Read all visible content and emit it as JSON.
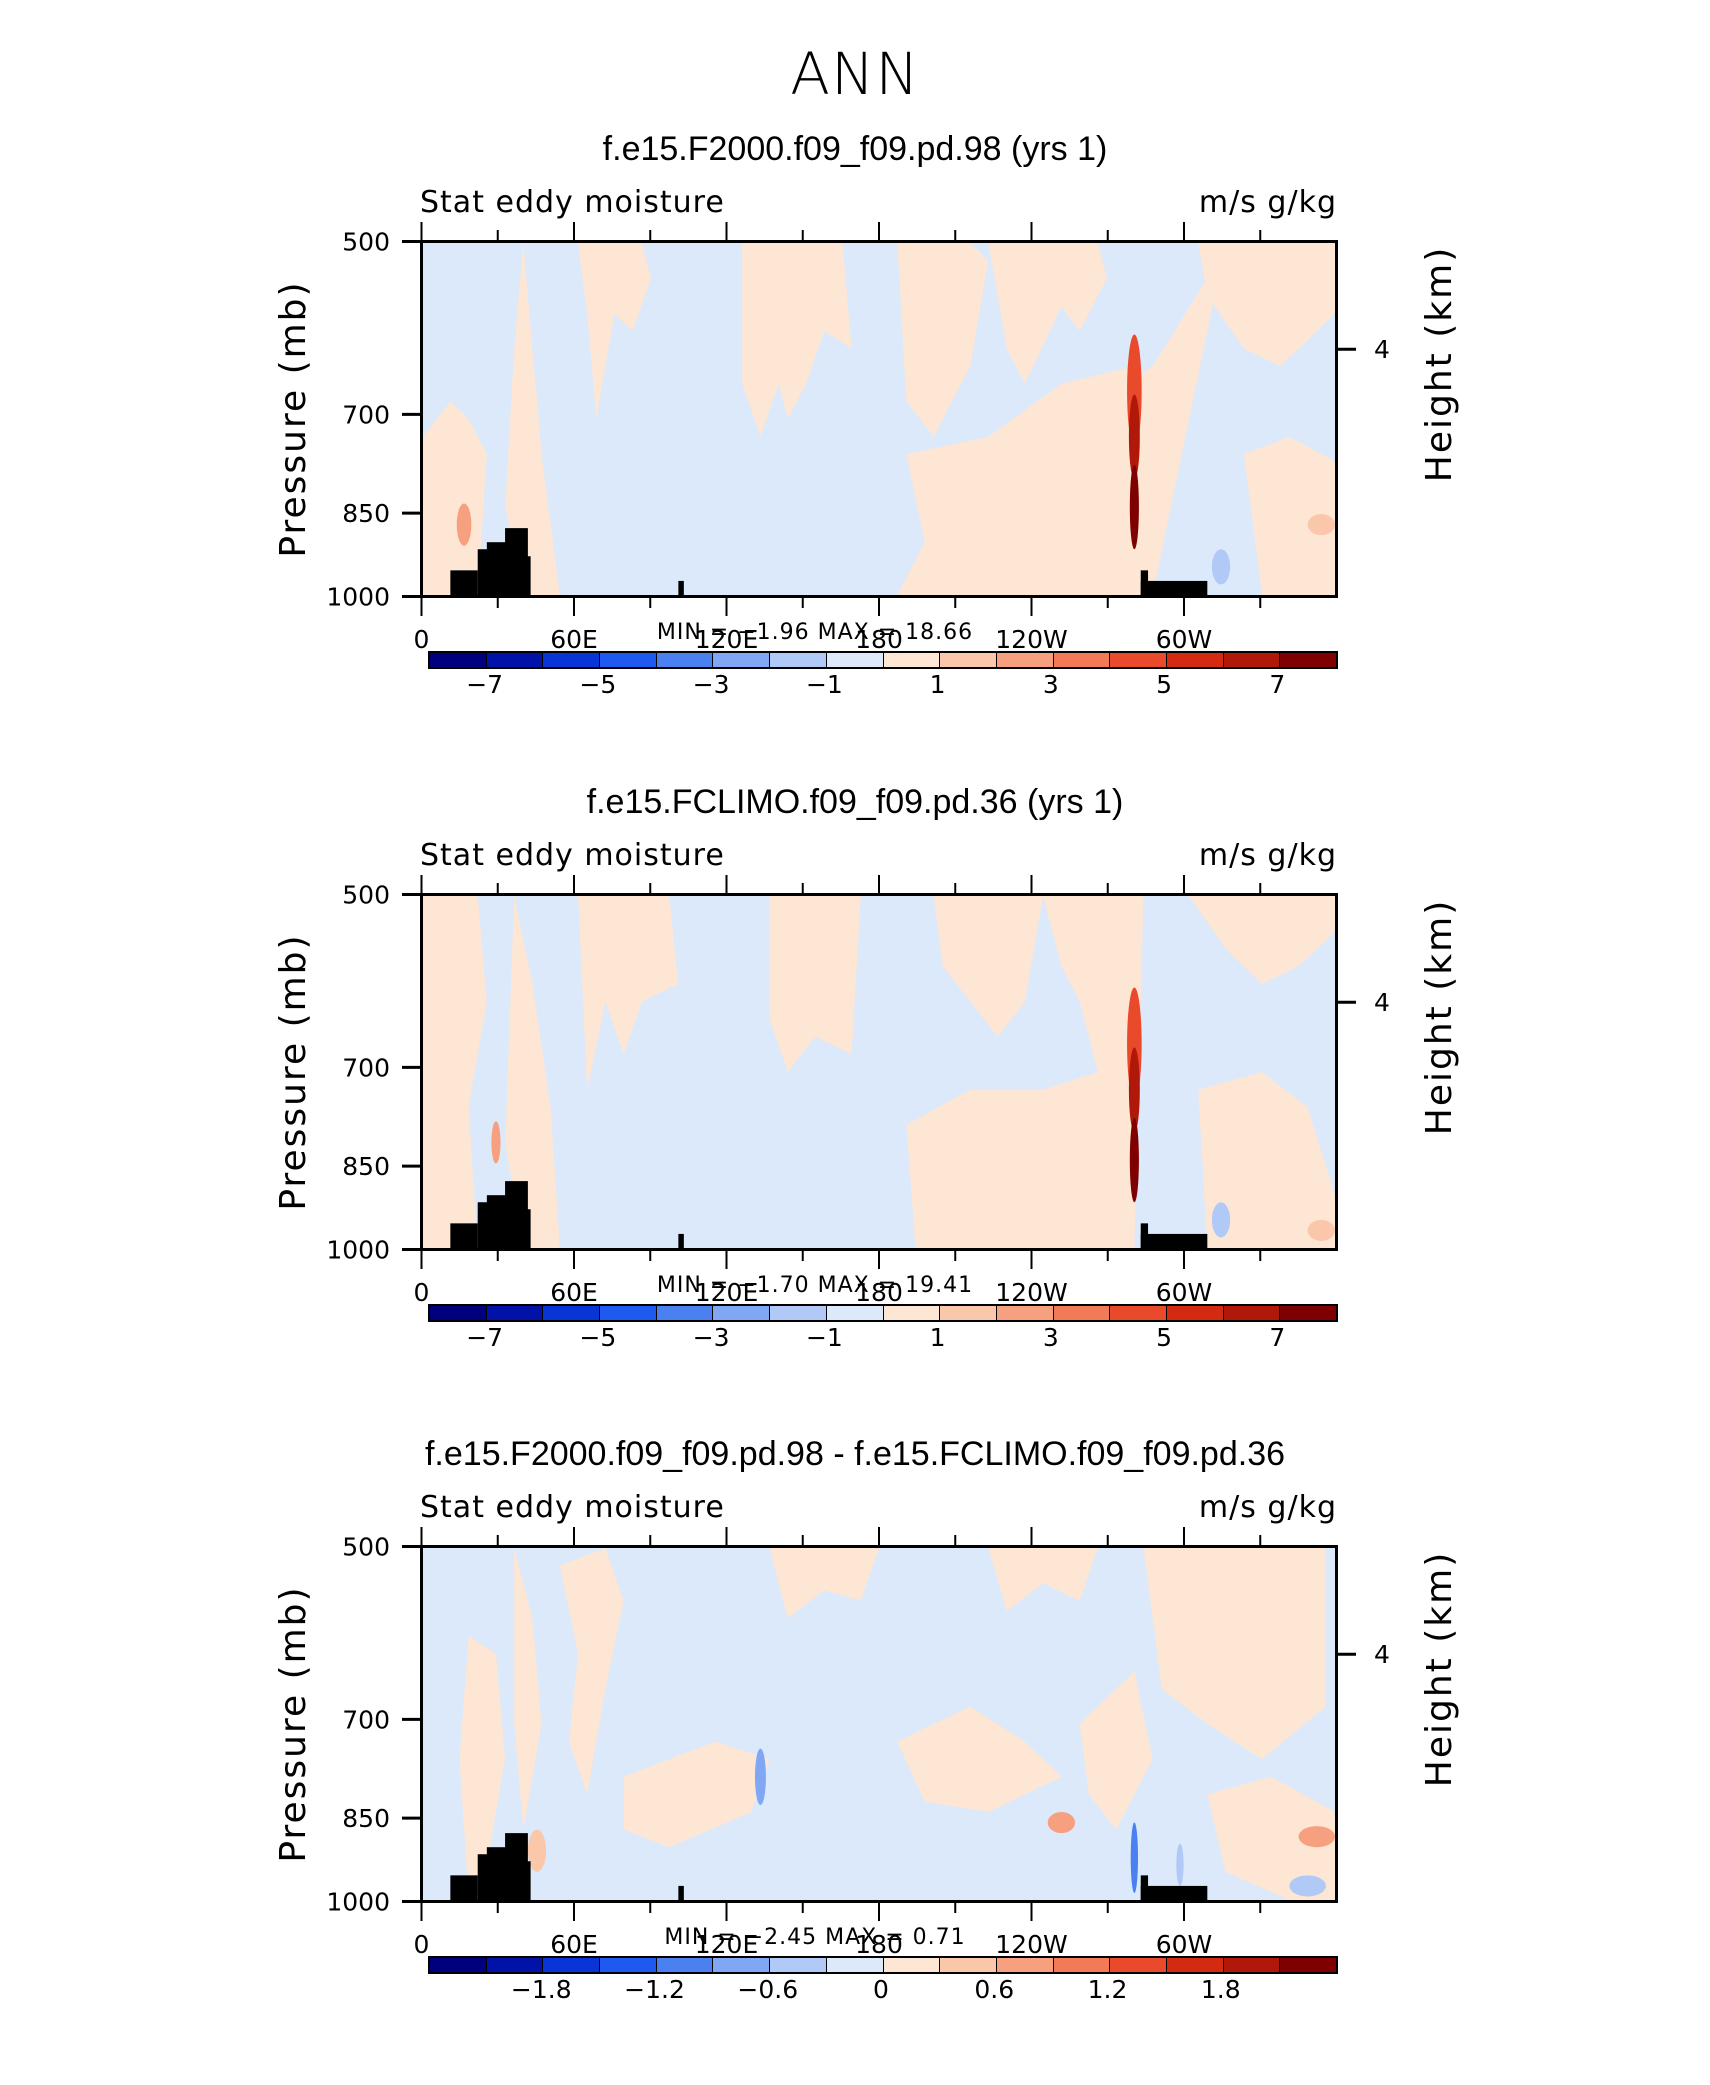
{
  "title": "ANN",
  "panels": [
    {
      "title": "f.e15.F2000.f09_f09.pd.98 (yrs 1)",
      "left_label": "Stat eddy moisture",
      "right_label": "m/s g/kg",
      "ylabel": "Pressure (mb)",
      "ylabel_right": "Height (km)",
      "min_label": "MIN =",
      "min_value": "−1.96",
      "max_label": "MAX =",
      "max_value": "18.66",
      "colorbar_labels": [
        "−7",
        "−5",
        "−3",
        "−1",
        "1",
        "3",
        "5",
        "7"
      ]
    },
    {
      "title": "f.e15.FCLIMO.f09_f09.pd.36 (yrs 1)",
      "left_label": "Stat eddy moisture",
      "right_label": "m/s g/kg",
      "ylabel": "Pressure (mb)",
      "ylabel_right": "Height (km)",
      "min_label": "MIN =",
      "min_value": "−1.70",
      "max_label": "MAX =",
      "max_value": "19.41",
      "colorbar_labels": [
        "−7",
        "−5",
        "−3",
        "−1",
        "1",
        "3",
        "5",
        "7"
      ]
    },
    {
      "title": "f.e15.F2000.f09_f09.pd.98 - f.e15.FCLIMO.f09_f09.pd.36",
      "left_label": "Stat eddy moisture",
      "right_label": "m/s g/kg",
      "ylabel": "Pressure (mb)",
      "ylabel_right": "Height (km)",
      "min_label": "MIN =",
      "min_value": "−2.45",
      "max_label": "MAX =",
      "max_value": "0.71",
      "colorbar_labels": [
        "−1.8",
        "−1.2",
        "−0.6",
        "0",
        "0.6",
        "1.2",
        "1.8"
      ]
    }
  ],
  "axes": {
    "y_ticks": [
      "500",
      "700",
      "850",
      "1000"
    ],
    "x_ticks": [
      "0",
      "60E",
      "120E",
      "180",
      "120W",
      "60W"
    ],
    "right_ticks": [
      "4"
    ]
  },
  "colors": {
    "main_colorbar": [
      "#00007f",
      "#0012a8",
      "#0a35d6",
      "#1f5af0",
      "#4a80f0",
      "#7fa7f3",
      "#b0c9f6",
      "#dbe9fb",
      "#fde6d4",
      "#fbc7ab",
      "#f7a080",
      "#f27a56",
      "#e94a2b",
      "#d42a12",
      "#b0190a",
      "#7f0000"
    ],
    "diff_colorbar": [
      "#00007f",
      "#0012a8",
      "#0a35d6",
      "#1f5af0",
      "#4a80f0",
      "#7fa7f3",
      "#b0c9f6",
      "#dbe9fb",
      "#fde6d4",
      "#fbc7ab",
      "#f7a080",
      "#f27a56",
      "#e94a2b",
      "#d42a12",
      "#b0190a",
      "#7f0000"
    ],
    "negative_fill": "#dbe9fb",
    "positive_fill": "#fde6d4",
    "topography": "#000000"
  },
  "chart_data": [
    {
      "type": "heatmap",
      "title": "f.e15.F2000.f09_f09.pd.98 (yrs 1)",
      "xlabel": "",
      "ylabel": "Pressure (mb)",
      "y2label": "Height (km)",
      "x_tick_labels": [
        "0",
        "60E",
        "120E",
        "180",
        "120W",
        "60W"
      ],
      "y_ticks": [
        500,
        700,
        850,
        1000
      ],
      "ylim": [
        1000,
        500
      ],
      "colorbar_levels": [
        -7,
        -6,
        -5,
        -4,
        -3,
        -2,
        -1,
        0,
        1,
        2,
        3,
        4,
        5,
        6,
        7
      ],
      "min": -1.96,
      "max": 18.66
    },
    {
      "type": "heatmap",
      "title": "f.e15.FCLIMO.f09_f09.pd.36 (yrs 1)",
      "xlabel": "",
      "ylabel": "Pressure (mb)",
      "y2label": "Height (km)",
      "x_tick_labels": [
        "0",
        "60E",
        "120E",
        "180",
        "120W",
        "60W"
      ],
      "y_ticks": [
        500,
        700,
        850,
        1000
      ],
      "ylim": [
        1000,
        500
      ],
      "colorbar_levels": [
        -7,
        -6,
        -5,
        -4,
        -3,
        -2,
        -1,
        0,
        1,
        2,
        3,
        4,
        5,
        6,
        7
      ],
      "min": -1.7,
      "max": 19.41
    },
    {
      "type": "heatmap",
      "title": "f.e15.F2000.f09_f09.pd.98 - f.e15.FCLIMO.f09_f09.pd.36",
      "xlabel": "",
      "ylabel": "Pressure (mb)",
      "y2label": "Height (km)",
      "x_tick_labels": [
        "0",
        "60E",
        "120E",
        "180",
        "120W",
        "60W"
      ],
      "y_ticks": [
        500,
        700,
        850,
        1000
      ],
      "ylim": [
        1000,
        500
      ],
      "colorbar_levels": [
        -1.8,
        -1.5,
        -1.2,
        -0.9,
        -0.6,
        -0.3,
        0,
        0.3,
        0.6,
        0.9,
        1.2,
        1.5,
        1.8
      ],
      "min": -2.45,
      "max": 0.71
    }
  ]
}
